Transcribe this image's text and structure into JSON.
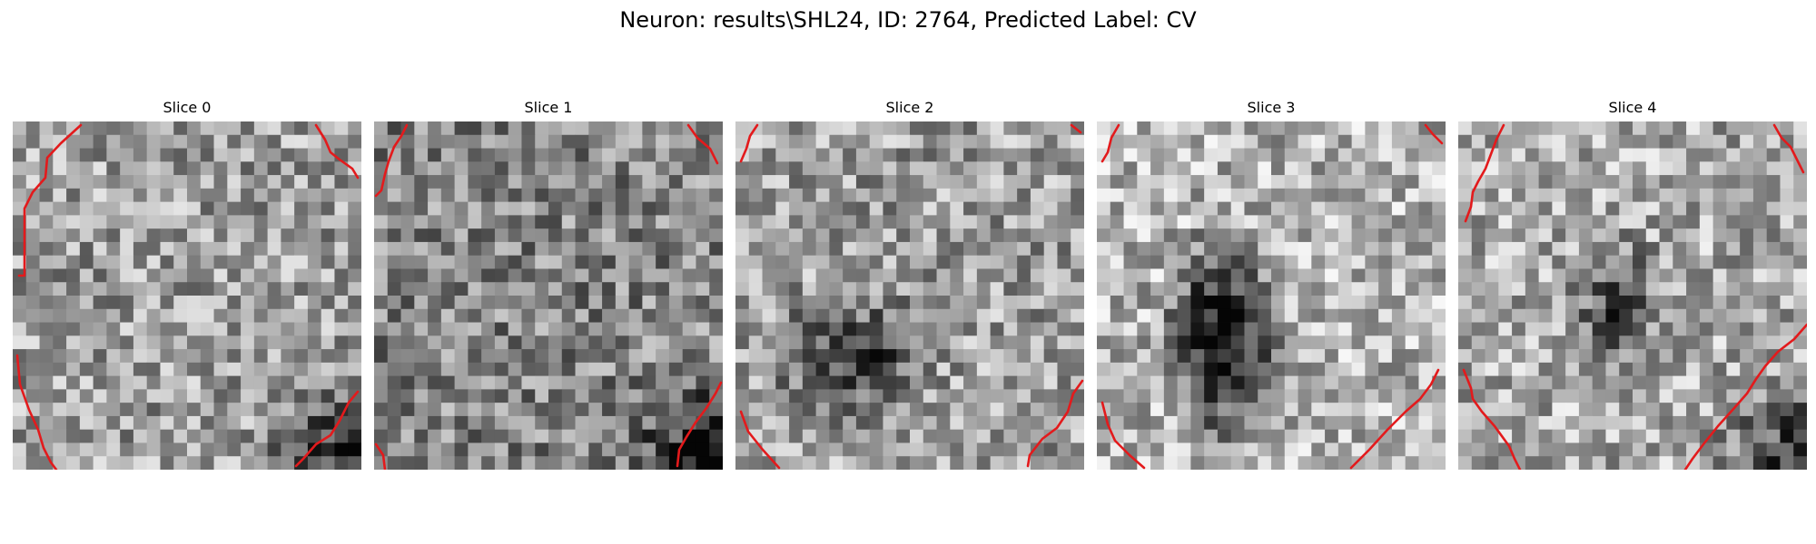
{
  "figure": {
    "title": "Neuron: results\\SHL24, ID: 2764, Predicted Label: CV"
  },
  "colors": {
    "background": "#ffffff",
    "contour": "#e31a1c",
    "colormap": "gray"
  },
  "slices": [
    {
      "title": "Slice 0",
      "dark_region": "none",
      "dark_corner": "bottom-right"
    },
    {
      "title": "Slice 1",
      "dark_region": "none",
      "dark_corner": "bottom-right"
    },
    {
      "title": "Slice 2",
      "dark_region": "center-left",
      "dark_corner": "none"
    },
    {
      "title": "Slice 3",
      "dark_region": "center-left-strong",
      "dark_corner": "none"
    },
    {
      "title": "Slice 4",
      "dark_region": "center",
      "dark_corner": "bottom-right"
    }
  ]
}
